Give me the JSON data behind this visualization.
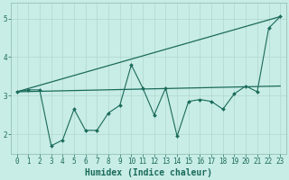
{
  "xlabel": "Humidex (Indice chaleur)",
  "bg_color": "#c8ece6",
  "grid_color": "#b0d8d0",
  "line_color": "#1a6b5a",
  "xlim": [
    -0.5,
    23.5
  ],
  "ylim": [
    1.5,
    5.4
  ],
  "yticks": [
    2,
    3,
    4,
    5
  ],
  "xticks": [
    0,
    1,
    2,
    3,
    4,
    5,
    6,
    7,
    8,
    9,
    10,
    11,
    12,
    13,
    14,
    15,
    16,
    17,
    18,
    19,
    20,
    21,
    22,
    23
  ],
  "line1_x": [
    0,
    1,
    2,
    3,
    4,
    5,
    6,
    7,
    8,
    9,
    10,
    11,
    12,
    13,
    14,
    15,
    16,
    17,
    18,
    19,
    20,
    21,
    22,
    23
  ],
  "line1_y": [
    3.1,
    3.15,
    3.15,
    1.7,
    1.85,
    2.65,
    2.1,
    2.1,
    2.55,
    2.75,
    3.8,
    3.2,
    2.5,
    3.2,
    1.95,
    2.85,
    2.9,
    2.85,
    2.65,
    3.05,
    3.25,
    3.1,
    4.75,
    5.05
  ],
  "line2_x": [
    0,
    23
  ],
  "line2_y": [
    3.1,
    3.25
  ],
  "line3_x": [
    0,
    23
  ],
  "line3_y": [
    3.1,
    5.05
  ],
  "xlabel_fontsize": 7.0,
  "tick_fontsize": 5.5
}
